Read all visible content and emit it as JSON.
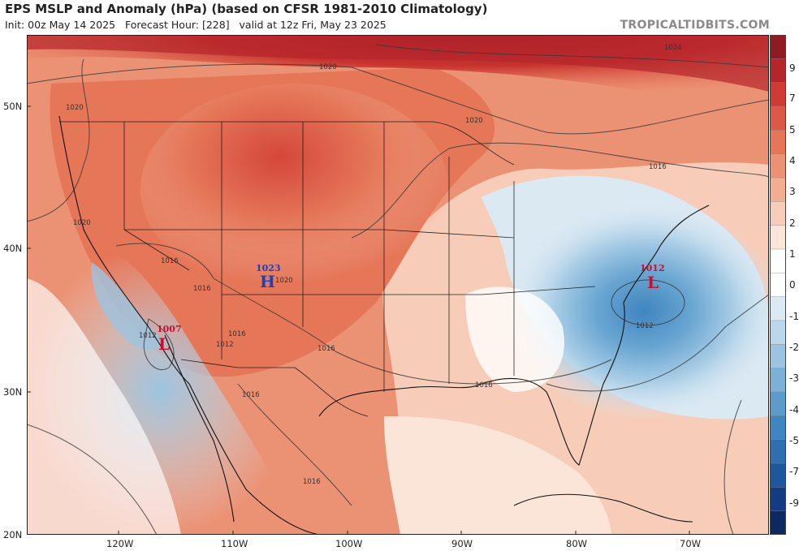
{
  "header": {
    "title": "EPS MSLP and Anomaly (hPa) (based on CFSR 1981-2010 Climatology)",
    "subtitle": "Init: 00z May 14 2025   Forecast Hour: [228]   valid at 12z Fri, May 23 2025",
    "brand": "TROPICALTIDBITS.COM"
  },
  "axes": {
    "lat_labels": [
      "50N",
      "40N",
      "30N",
      "20N"
    ],
    "lon_labels": [
      "120W",
      "110W",
      "100W",
      "90W",
      "80W",
      "70W"
    ]
  },
  "colorbar": {
    "labels": [
      "9",
      "7",
      "5",
      "4",
      "3",
      "2",
      "1",
      "0",
      "-1",
      "-2",
      "-3",
      "-4",
      "-5",
      "-7",
      "-9"
    ],
    "colors": [
      "#8e1a22",
      "#b5252c",
      "#cf3b33",
      "#dc5a45",
      "#e57658",
      "#ec9274",
      "#f2ae93",
      "#f7ccb8",
      "#fbe4d8",
      "#ffffff",
      "#ffffff",
      "#dbe9f3",
      "#bcd7ea",
      "#9cc4e0",
      "#7bb1d6",
      "#5b9ccb",
      "#3f85bf",
      "#2d6fb0",
      "#1f579c",
      "#143c80",
      "#0c2a60"
    ]
  },
  "pressure_centers": [
    {
      "type": "H",
      "value": "1023"
    },
    {
      "type": "L",
      "value": "1012"
    },
    {
      "type": "L",
      "value": "1007"
    }
  ],
  "contour_labels": [
    "1024",
    "1020",
    "1020",
    "1020",
    "1020",
    "1016",
    "1016",
    "1016",
    "1016",
    "1016",
    "1016",
    "1016",
    "1016",
    "1012",
    "1012",
    "1012",
    "1020"
  ]
}
